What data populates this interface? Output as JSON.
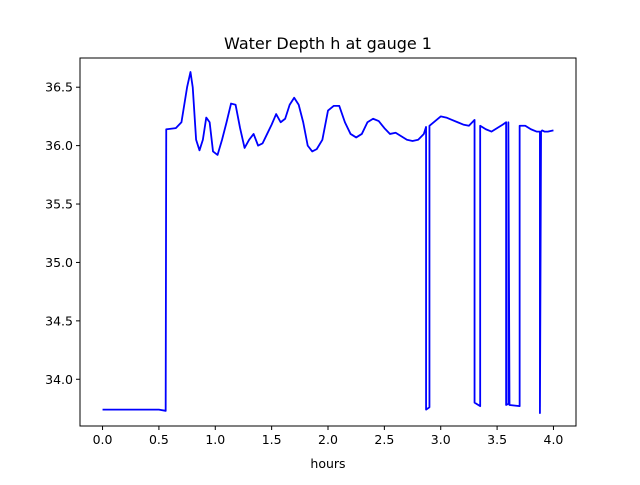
{
  "chart_data": {
    "type": "line",
    "title": "Water Depth h at gauge 1",
    "xlabel": "hours",
    "ylabel": "",
    "xlim": [
      -0.2,
      4.2
    ],
    "ylim": [
      33.6,
      36.75
    ],
    "xticks": [
      0.0,
      0.5,
      1.0,
      1.5,
      2.0,
      2.5,
      3.0,
      3.5,
      4.0
    ],
    "xtick_labels": [
      "0.0",
      "0.5",
      "1.0",
      "1.5",
      "2.0",
      "2.5",
      "3.0",
      "3.5",
      "4.0"
    ],
    "yticks": [
      34.0,
      34.5,
      35.0,
      35.5,
      36.0,
      36.5
    ],
    "ytick_labels": [
      "34.0",
      "34.5",
      "35.0",
      "35.5",
      "36.0",
      "36.5"
    ],
    "grid": false,
    "legend": "none",
    "series": [
      {
        "color": "#0000ff",
        "x": [
          0.0,
          0.5,
          0.56,
          0.565,
          0.57,
          0.65,
          0.7,
          0.75,
          0.78,
          0.8,
          0.83,
          0.86,
          0.89,
          0.92,
          0.95,
          0.98,
          1.02,
          1.06,
          1.1,
          1.14,
          1.18,
          1.22,
          1.26,
          1.3,
          1.34,
          1.38,
          1.42,
          1.46,
          1.5,
          1.54,
          1.58,
          1.62,
          1.66,
          1.7,
          1.74,
          1.78,
          1.82,
          1.86,
          1.9,
          1.95,
          2.0,
          2.05,
          2.1,
          2.15,
          2.2,
          2.25,
          2.3,
          2.35,
          2.4,
          2.45,
          2.5,
          2.55,
          2.6,
          2.65,
          2.7,
          2.75,
          2.8,
          2.85,
          2.87,
          2.87,
          2.9,
          2.9,
          3.0,
          3.05,
          3.1,
          3.15,
          3.2,
          3.25,
          3.3,
          3.3,
          3.35,
          3.35,
          3.4,
          3.45,
          3.5,
          3.55,
          3.58,
          3.58,
          3.6,
          3.6,
          3.61,
          3.7,
          3.7,
          3.75,
          3.8,
          3.85,
          3.88,
          3.88,
          3.89,
          3.9,
          3.92,
          3.95,
          4.0
        ],
        "y": [
          33.74,
          33.74,
          33.73,
          36.14,
          36.14,
          36.15,
          36.2,
          36.5,
          36.63,
          36.5,
          36.05,
          35.96,
          36.05,
          36.24,
          36.2,
          35.95,
          35.92,
          36.05,
          36.2,
          36.36,
          36.35,
          36.15,
          35.98,
          36.05,
          36.1,
          36.0,
          36.02,
          36.1,
          36.18,
          36.27,
          36.2,
          36.23,
          36.35,
          36.41,
          36.35,
          36.2,
          36.0,
          35.95,
          35.97,
          36.05,
          36.3,
          36.34,
          36.34,
          36.2,
          36.1,
          36.07,
          36.1,
          36.2,
          36.23,
          36.21,
          36.15,
          36.1,
          36.11,
          36.08,
          36.05,
          36.04,
          36.05,
          36.1,
          36.16,
          33.74,
          33.76,
          36.17,
          36.25,
          36.24,
          36.22,
          36.2,
          36.18,
          36.17,
          36.22,
          33.8,
          33.77,
          36.17,
          36.14,
          36.12,
          36.15,
          36.18,
          36.2,
          33.78,
          33.79,
          36.2,
          33.78,
          33.77,
          36.17,
          36.17,
          36.14,
          36.12,
          36.12,
          33.71,
          36.12,
          36.13,
          36.12,
          36.12,
          36.13
        ]
      }
    ]
  }
}
